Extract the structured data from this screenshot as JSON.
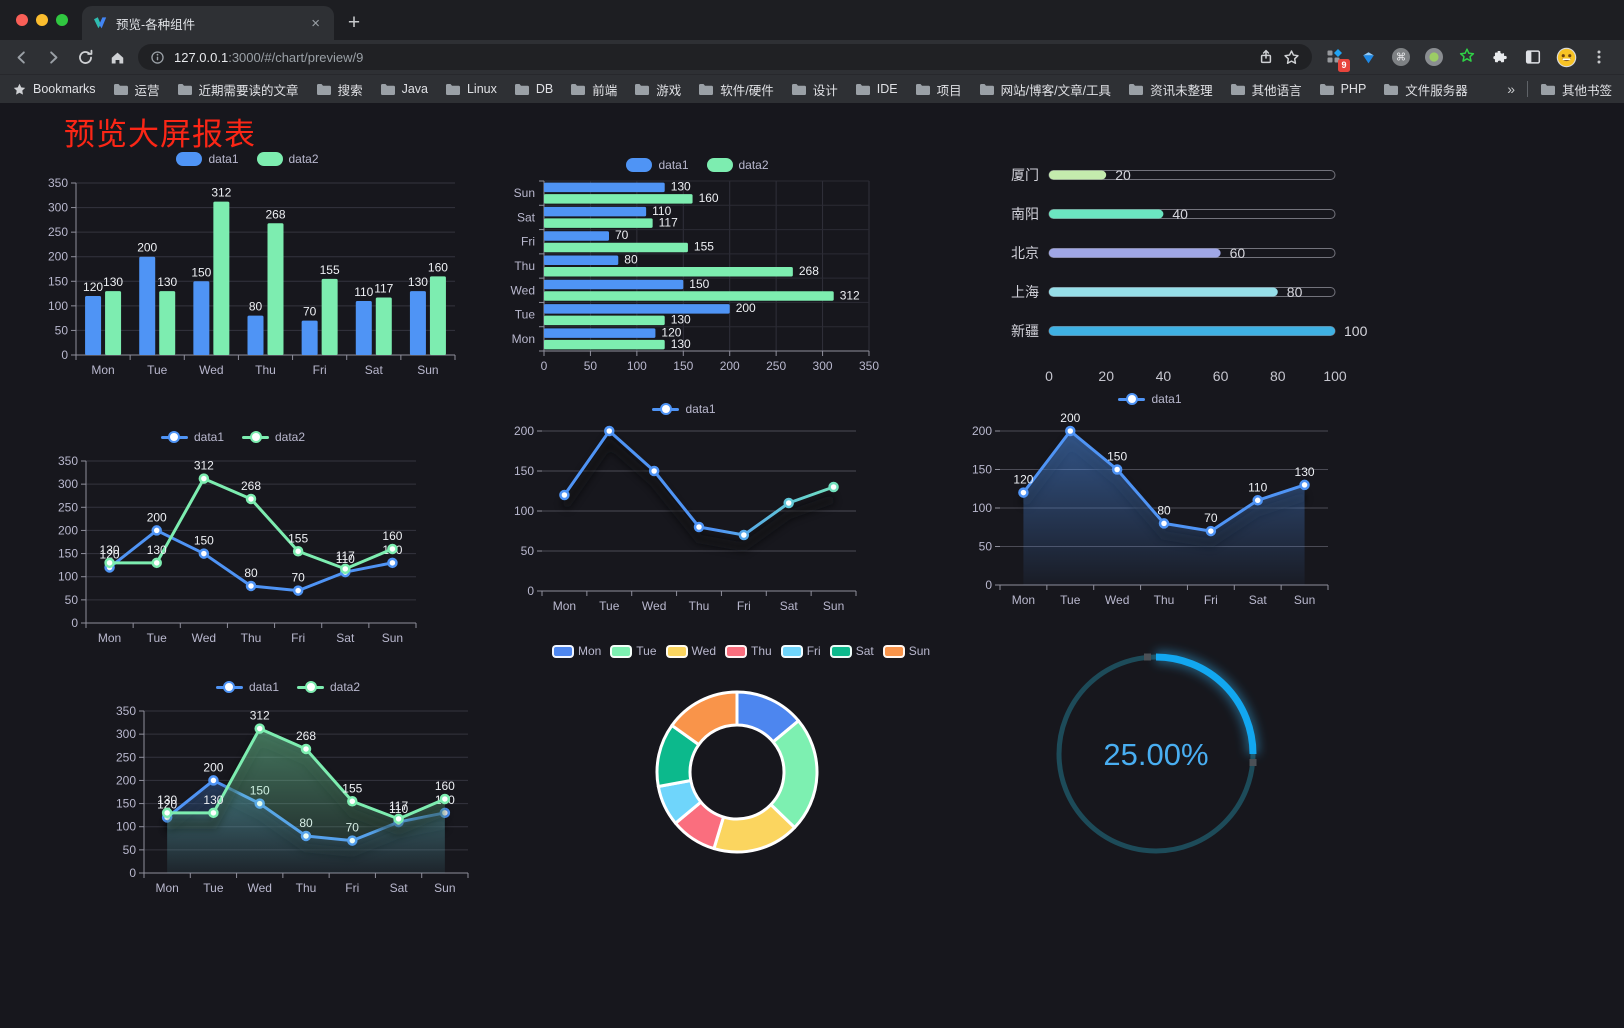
{
  "window": {
    "tab_title": "预览-各种组件",
    "close_glyph": "×",
    "newtab_glyph": "+",
    "url": {
      "host": "127.0.0.1",
      "rest": ":3000/#/chart/preview/9"
    },
    "ext_badge": "9",
    "icons": {
      "command_glyph": "⌘"
    }
  },
  "bookmarks": {
    "label": "Bookmarks",
    "folders": [
      "运营",
      "近期需要读的文章",
      "搜索",
      "Java",
      "Linux",
      "DB",
      "前端",
      "游戏",
      "软件/硬件",
      "设计",
      "IDE",
      "项目",
      "网站/博客/文章/工具",
      "资讯未整理",
      "其他语言",
      "PHP",
      "文件服务器"
    ],
    "overflow": "»",
    "other": "其他书签"
  },
  "page": {
    "title": "预览大屏报表",
    "title_color": "#fb2616",
    "background": "#17171d"
  },
  "chart_data": [
    {
      "id": "grouped-bar",
      "type": "bar",
      "title": "",
      "categories": [
        "Mon",
        "Tue",
        "Wed",
        "Thu",
        "Fri",
        "Sat",
        "Sun"
      ],
      "series": [
        {
          "name": "data1",
          "color": "#4f94f5",
          "values": [
            120,
            200,
            150,
            80,
            70,
            110,
            130
          ]
        },
        {
          "name": "data2",
          "color": "#7dedb0",
          "values": [
            130,
            130,
            312,
            268,
            155,
            117,
            160
          ]
        }
      ],
      "ylim": [
        0,
        350
      ],
      "ytick_step": 50,
      "legend_position": "top",
      "value_labels": true,
      "grid": true
    },
    {
      "id": "grouped-hbar",
      "type": "bar-horizontal",
      "title": "",
      "categories": [
        "Sun",
        "Sat",
        "Fri",
        "Thu",
        "Wed",
        "Tue",
        "Mon"
      ],
      "series": [
        {
          "name": "data1",
          "color": "#4f94f5",
          "values": [
            130,
            110,
            70,
            80,
            150,
            200,
            120
          ]
        },
        {
          "name": "data2",
          "color": "#7dedb0",
          "values": [
            160,
            117,
            155,
            268,
            312,
            130,
            130
          ]
        }
      ],
      "xlim": [
        0,
        350
      ],
      "xtick_step": 50,
      "legend_position": "top",
      "value_labels": true,
      "grid": true
    },
    {
      "id": "city-progress",
      "type": "progress-bars",
      "title": "",
      "rows": [
        {
          "label": "厦门",
          "value": 20,
          "color": "#c4ebad"
        },
        {
          "label": "南阳",
          "value": 40,
          "color": "#6be6c1"
        },
        {
          "label": "北京",
          "value": 60,
          "color": "#a0a7e6"
        },
        {
          "label": "上海",
          "value": 80,
          "color": "#96dee8"
        },
        {
          "label": "新疆",
          "value": 100,
          "color": "#3fb1e3"
        }
      ],
      "xlim": [
        0,
        100
      ],
      "xticks": [
        0,
        20,
        40,
        60,
        80,
        100
      ]
    },
    {
      "id": "line-two",
      "type": "line",
      "title": "",
      "categories": [
        "Mon",
        "Tue",
        "Wed",
        "Thu",
        "Fri",
        "Sat",
        "Sun"
      ],
      "series": [
        {
          "name": "data1",
          "color": "#4f94f5",
          "values": [
            120,
            200,
            150,
            80,
            70,
            110,
            130
          ]
        },
        {
          "name": "data2",
          "color": "#7dedb0",
          "values": [
            130,
            130,
            312,
            268,
            155,
            117,
            160
          ]
        }
      ],
      "ylim": [
        0,
        350
      ],
      "ytick_step": 50,
      "legend_position": "top",
      "value_labels": true,
      "shadow": false
    },
    {
      "id": "line-gradient",
      "type": "line",
      "title": "",
      "categories": [
        "Mon",
        "Tue",
        "Wed",
        "Thu",
        "Fri",
        "Sat",
        "Sun"
      ],
      "series": [
        {
          "name": "data1",
          "gradient": [
            "#4f94f5",
            "#7dedb0"
          ],
          "values": [
            120,
            200,
            150,
            80,
            70,
            110,
            130
          ]
        }
      ],
      "ylim": [
        0,
        200
      ],
      "ytick_step": 50,
      "legend_position": "top",
      "value_labels": false,
      "shadow": true
    },
    {
      "id": "area-single",
      "type": "area",
      "title": "",
      "categories": [
        "Mon",
        "Tue",
        "Wed",
        "Thu",
        "Fri",
        "Sat",
        "Sun"
      ],
      "series": [
        {
          "name": "data1",
          "color": "#4f94f5",
          "values": [
            120,
            200,
            150,
            80,
            70,
            110,
            130
          ]
        }
      ],
      "ylim": [
        0,
        200
      ],
      "ytick_step": 50,
      "legend_position": "top",
      "value_labels": true,
      "shadow": true
    },
    {
      "id": "area-two",
      "type": "area",
      "title": "",
      "categories": [
        "Mon",
        "Tue",
        "Wed",
        "Thu",
        "Fri",
        "Sat",
        "Sun"
      ],
      "series": [
        {
          "name": "data1",
          "color": "#4f94f5",
          "values": [
            120,
            200,
            150,
            80,
            70,
            110,
            130
          ]
        },
        {
          "name": "data2",
          "color": "#7dedb0",
          "values": [
            130,
            130,
            312,
            268,
            155,
            117,
            160
          ]
        }
      ],
      "ylim": [
        0,
        350
      ],
      "ytick_step": 50,
      "legend_position": "top",
      "value_labels": true,
      "shadow": true
    },
    {
      "id": "donut",
      "type": "pie",
      "title": "",
      "items": [
        {
          "label": "Mon",
          "value": 120,
          "color": "#4d86ef"
        },
        {
          "label": "Tue",
          "value": 200,
          "color": "#7df0b1"
        },
        {
          "label": "Wed",
          "value": 150,
          "color": "#fbd55f"
        },
        {
          "label": "Thu",
          "value": 80,
          "color": "#fa6e7e"
        },
        {
          "label": "Fri",
          "value": 70,
          "color": "#6fd5fb"
        },
        {
          "label": "Sat",
          "value": 110,
          "color": "#0cb98c"
        },
        {
          "label": "Sun",
          "value": 130,
          "color": "#f9944a"
        }
      ],
      "legend_position": "top",
      "inner_radius_ratio": 0.59
    },
    {
      "id": "gauge",
      "type": "gauge",
      "title": "",
      "label": "25.00%",
      "percent": 25,
      "progress_color": "#12a7f0",
      "track_color": "#1d4b59",
      "text_color": "#49aef1"
    }
  ]
}
